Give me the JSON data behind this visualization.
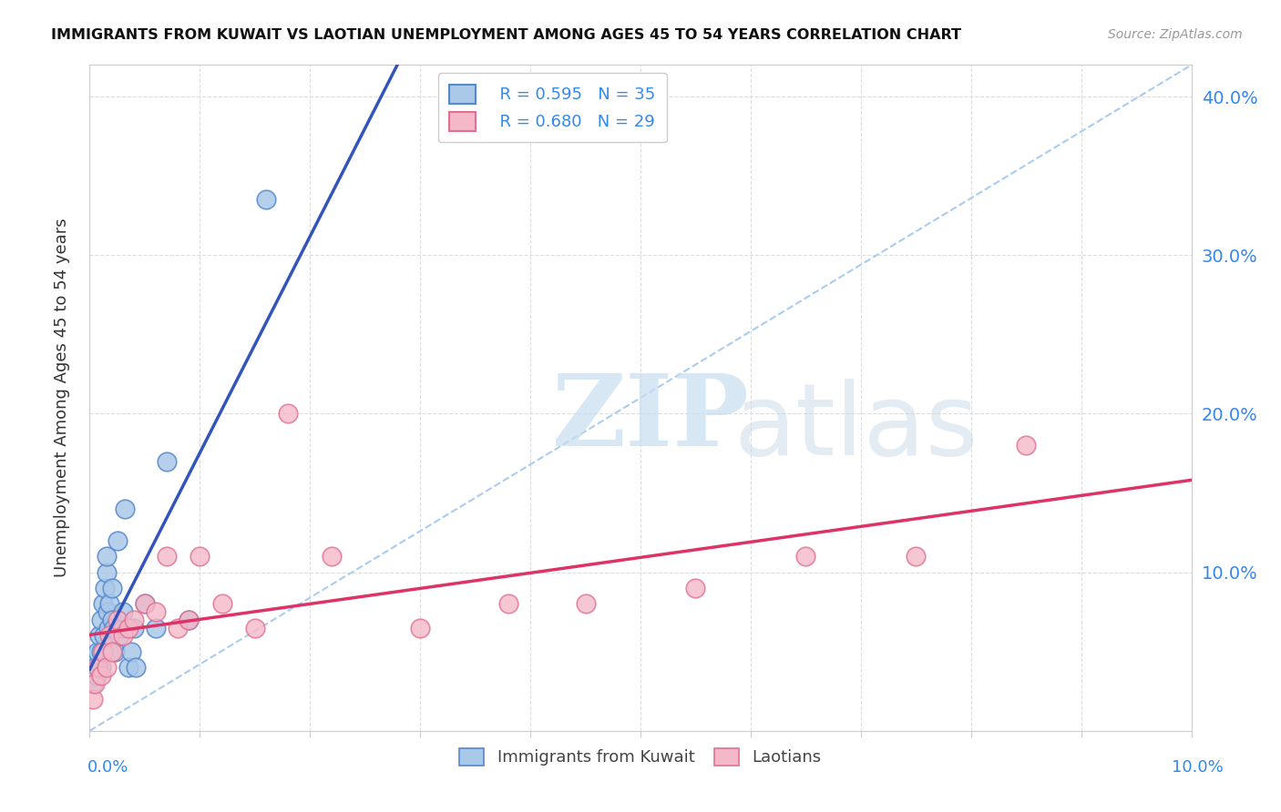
{
  "title": "IMMIGRANTS FROM KUWAIT VS LAOTIAN UNEMPLOYMENT AMONG AGES 45 TO 54 YEARS CORRELATION CHART",
  "source": "Source: ZipAtlas.com",
  "ylabel": "Unemployment Among Ages 45 to 54 years",
  "xlim": [
    0.0,
    0.1
  ],
  "ylim": [
    0.0,
    0.42
  ],
  "ytick_vals": [
    0.1,
    0.2,
    0.3,
    0.4
  ],
  "ytick_labels_right": [
    "10.0%",
    "20.0%",
    "30.0%",
    "40.0%"
  ],
  "blue_color": "#aac8e8",
  "blue_edge_color": "#5588cc",
  "pink_color": "#f5b8c8",
  "pink_edge_color": "#e07090",
  "blue_line_color": "#3355bb",
  "pink_line_color": "#dd3366",
  "dashed_line_color": "#aaccee",
  "legend_r_blue": "R = 0.595",
  "legend_n_blue": "N = 35",
  "legend_r_pink": "R = 0.680",
  "legend_n_pink": "N = 29",
  "blue_scatter_x": [
    0.0003,
    0.0005,
    0.0006,
    0.0007,
    0.0008,
    0.0009,
    0.001,
    0.001,
    0.001,
    0.0012,
    0.0013,
    0.0014,
    0.0015,
    0.0015,
    0.0016,
    0.0017,
    0.0018,
    0.002,
    0.002,
    0.0022,
    0.0023,
    0.0025,
    0.0027,
    0.003,
    0.003,
    0.0032,
    0.0035,
    0.0038,
    0.004,
    0.0042,
    0.005,
    0.006,
    0.007,
    0.009,
    0.016
  ],
  "blue_scatter_y": [
    0.03,
    0.04,
    0.035,
    0.05,
    0.04,
    0.06,
    0.07,
    0.05,
    0.04,
    0.08,
    0.06,
    0.09,
    0.1,
    0.11,
    0.075,
    0.065,
    0.08,
    0.09,
    0.07,
    0.065,
    0.05,
    0.12,
    0.06,
    0.065,
    0.075,
    0.14,
    0.04,
    0.05,
    0.065,
    0.04,
    0.08,
    0.065,
    0.17,
    0.07,
    0.335
  ],
  "pink_scatter_x": [
    0.0003,
    0.0005,
    0.0007,
    0.001,
    0.0012,
    0.0015,
    0.0018,
    0.002,
    0.0025,
    0.003,
    0.0035,
    0.004,
    0.005,
    0.006,
    0.007,
    0.008,
    0.009,
    0.01,
    0.012,
    0.015,
    0.018,
    0.022,
    0.03,
    0.038,
    0.045,
    0.055,
    0.065,
    0.075,
    0.085
  ],
  "pink_scatter_y": [
    0.02,
    0.03,
    0.04,
    0.035,
    0.05,
    0.04,
    0.06,
    0.05,
    0.07,
    0.06,
    0.065,
    0.07,
    0.08,
    0.075,
    0.11,
    0.065,
    0.07,
    0.11,
    0.08,
    0.065,
    0.2,
    0.11,
    0.065,
    0.08,
    0.08,
    0.09,
    0.11,
    0.11,
    0.18
  ]
}
